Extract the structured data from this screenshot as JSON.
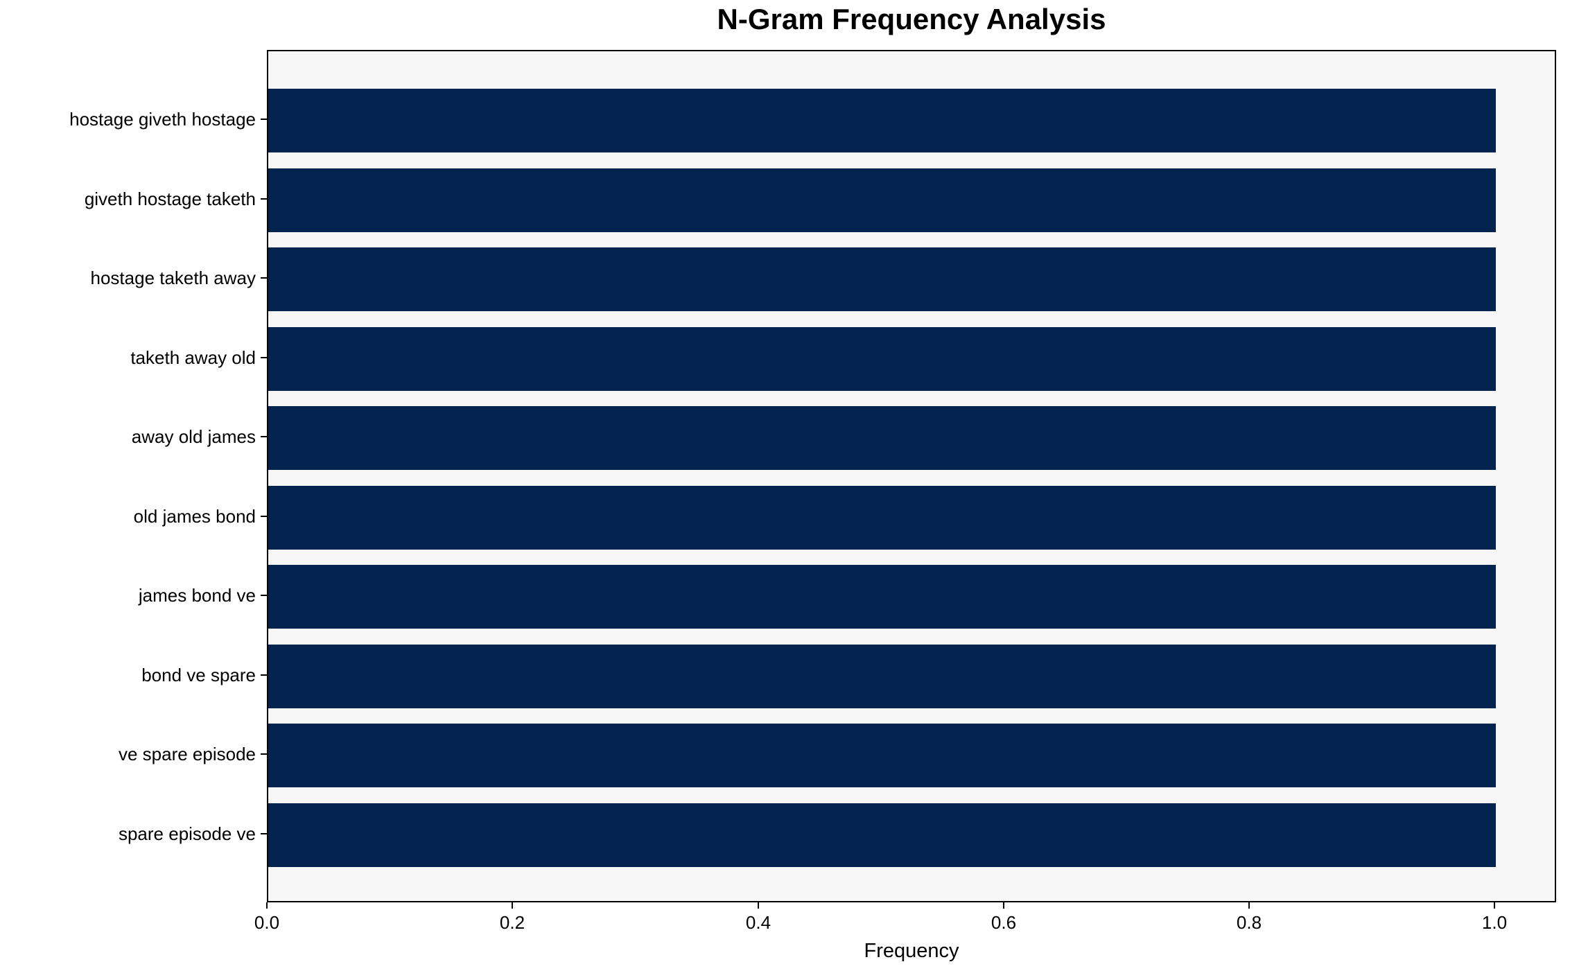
{
  "figure": {
    "background_color": "#ffffff",
    "plot_background_color": "#f6f6f6",
    "spine_color": "#000000",
    "text_color": "#000000",
    "bar_color": "#02234d"
  },
  "chart_data": {
    "type": "bar",
    "orientation": "horizontal",
    "title": "N-Gram Frequency Analysis",
    "xlabel": "Frequency",
    "ylabel": "",
    "categories": [
      "hostage giveth hostage",
      "giveth hostage taketh",
      "hostage taketh away",
      "taketh away old",
      "away old james",
      "old james bond",
      "james bond ve",
      "bond ve spare",
      "ve spare episode",
      "spare episode ve"
    ],
    "values": [
      1.0,
      1.0,
      1.0,
      1.0,
      1.0,
      1.0,
      1.0,
      1.0,
      1.0,
      1.0
    ],
    "xlim": [
      0,
      1.05
    ],
    "xticks": [
      0.0,
      0.2,
      0.4,
      0.6,
      0.8,
      1.0
    ],
    "xtick_labels": [
      "0.0",
      "0.2",
      "0.4",
      "0.6",
      "0.8",
      "1.0"
    ],
    "grid": false,
    "legend": null,
    "bar_height_fraction": 0.8
  }
}
